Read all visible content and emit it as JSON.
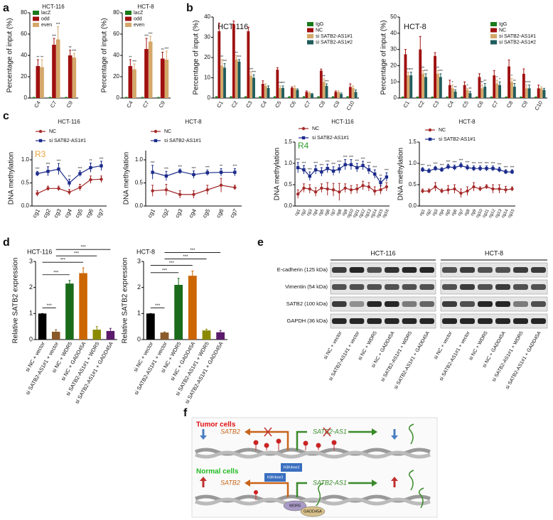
{
  "panel_labels": [
    "a",
    "b",
    "c",
    "d",
    "e",
    "f"
  ],
  "chart_data": [
    {
      "type": "bar",
      "title": "HCT-116",
      "ylabel": "Percentage of input (%)",
      "categories": [
        "C4",
        "C7",
        "C9"
      ],
      "ylim": [
        0,
        80
      ],
      "yticks": [
        0,
        20,
        40,
        60,
        80
      ],
      "series": [
        {
          "name": "lacZ",
          "color": "#1a7a1a",
          "values": [
            0.5,
            0.5,
            0.5
          ],
          "errors": [
            0.2,
            0.2,
            0.2
          ]
        },
        {
          "name": "odd",
          "color": "#a01010",
          "values": [
            30,
            50,
            40
          ],
          "errors": [
            6,
            6,
            5
          ],
          "sig": [
            "**",
            "***",
            "**"
          ]
        },
        {
          "name": "even",
          "color": "#d4a86a",
          "values": [
            29,
            55,
            38
          ],
          "errors": [
            7,
            12,
            4
          ],
          "sig": [
            "**",
            "***",
            "***"
          ]
        }
      ]
    },
    {
      "type": "bar",
      "title": "HCT-8",
      "ylabel": "Percentage of input (%)",
      "categories": [
        "C4",
        "C7",
        "C9"
      ],
      "ylim": [
        0,
        80
      ],
      "yticks": [
        0,
        20,
        40,
        60,
        80
      ],
      "series": [
        {
          "name": "lacZ",
          "color": "#1a7a1a",
          "values": [
            0.5,
            0.5,
            0.5
          ],
          "errors": [
            0.2,
            0.2,
            0.2
          ]
        },
        {
          "name": "odd",
          "color": "#a01010",
          "values": [
            30,
            46,
            37
          ],
          "errors": [
            6,
            10,
            6
          ],
          "sig": [
            "**",
            "***",
            "**"
          ]
        },
        {
          "name": "even",
          "color": "#d4a86a",
          "values": [
            27,
            53,
            36
          ],
          "errors": [
            5,
            5,
            8
          ],
          "sig": [
            "***",
            "***",
            "***"
          ]
        }
      ]
    },
    {
      "type": "bar",
      "title": "HCT-116",
      "ylabel": "Percentage of input (%)",
      "categories": [
        "C1",
        "C2",
        "C3",
        "C4",
        "C5",
        "C6",
        "C7",
        "C8",
        "C9",
        "C10"
      ],
      "ylim": [
        0,
        40
      ],
      "yticks": [
        0,
        10,
        20,
        30,
        40
      ],
      "series": [
        {
          "name": "IgG",
          "color": "#1a7a1a",
          "values": [
            0.5,
            0.5,
            0.5,
            0.5,
            0.5,
            0.5,
            0.5,
            0.5,
            0.5,
            0.5
          ],
          "errors": [
            0.2,
            0.2,
            0.2,
            0.2,
            0.2,
            0.2,
            0.2,
            0.2,
            0.2,
            0.2
          ]
        },
        {
          "name": "NC",
          "color": "#a01010",
          "values": [
            33,
            36.5,
            33,
            7,
            14,
            5,
            3,
            13.5,
            3,
            5.5
          ],
          "errors": [
            4,
            1.5,
            2,
            1.5,
            1,
            0.5,
            0.5,
            0.8,
            0.5,
            1.5
          ]
        },
        {
          "name": "si SATB2-AS1#1",
          "color": "#d4a86a",
          "values": [
            16,
            19,
            11,
            6,
            5,
            5,
            2.5,
            8,
            3,
            5
          ],
          "errors": [
            3,
            2,
            2,
            1,
            1,
            1,
            0.5,
            1.5,
            0.5,
            1
          ],
          "sig": [
            "**",
            "**",
            "***",
            null,
            "***",
            null,
            null,
            "**",
            null,
            null
          ]
        },
        {
          "name": "si SATB2-AS1#2",
          "color": "#1f5c5c",
          "values": [
            15,
            18,
            10,
            5,
            5,
            4,
            2,
            6,
            2,
            3
          ],
          "errors": [
            2,
            1,
            1.5,
            1,
            1,
            0.5,
            0.3,
            1,
            0.5,
            1
          ],
          "sig": [
            "***",
            "***",
            "***",
            null,
            "***",
            null,
            null,
            "***",
            null,
            null
          ]
        }
      ]
    },
    {
      "type": "bar",
      "title": "HCT-8",
      "ylabel": "Percentage of input (%)",
      "categories": [
        "C1",
        "C2",
        "C3",
        "C4",
        "C5",
        "C6",
        "C7",
        "C8",
        "C9",
        "C10"
      ],
      "ylim": [
        0,
        50
      ],
      "yticks": [
        0,
        10,
        20,
        30,
        40,
        50
      ],
      "series": [
        {
          "name": "IgG",
          "color": "#1a7a1a",
          "values": [
            0.5,
            0.5,
            0.5,
            0.5,
            0.5,
            0.5,
            0.5,
            0.5,
            0.5,
            0.5
          ],
          "errors": [
            0.2,
            0.2,
            0.2,
            0.2,
            0.2,
            0.2,
            0.2,
            0.2,
            0.2,
            0.2
          ]
        },
        {
          "name": "NC",
          "color": "#a01010",
          "values": [
            27,
            30,
            26,
            8,
            8,
            13,
            14,
            19.5,
            15,
            6
          ],
          "errors": [
            3,
            8,
            2,
            3,
            2,
            2,
            3,
            4,
            3,
            2
          ]
        },
        {
          "name": "si SATB2-AS1#1",
          "color": "#d4a86a",
          "values": [
            14,
            15,
            15,
            6,
            5,
            6,
            9,
            10,
            6,
            6
          ],
          "errors": [
            2,
            2,
            2,
            2,
            1,
            2,
            2,
            2,
            2,
            1
          ],
          "sig": [
            "**",
            "**",
            "**",
            "*",
            "*",
            "**",
            "*",
            "*",
            "**",
            null
          ]
        },
        {
          "name": "si SATB2-AS1#2",
          "color": "#1f5c5c",
          "values": [
            14,
            13,
            13,
            4,
            3,
            7,
            8,
            7,
            6,
            5
          ],
          "errors": [
            2,
            2,
            2,
            1,
            1,
            2,
            2,
            2,
            2,
            1
          ],
          "sig": [
            "***",
            "***",
            "***",
            "**",
            "**",
            "**",
            "*",
            "**",
            "**",
            null
          ]
        }
      ]
    },
    {
      "type": "line",
      "title": "HCT-116",
      "annotation": "R3",
      "annotation_color": "#e8a33a",
      "ylabel": "DNA methylation",
      "categories": [
        "cg1",
        "cg2",
        "cg3",
        "cg4",
        "cg5",
        "cg6",
        "cg7"
      ],
      "ylim": [
        0,
        1.2
      ],
      "yticks": [
        {
          "value": 0,
          "label": "0.0"
        },
        {
          "value": 0.5,
          "label": "0.5"
        },
        {
          "value": 1,
          "label": "1.0"
        }
      ],
      "series": [
        {
          "name": "NC",
          "color": "#a52a2a",
          "marker": "circle",
          "values": [
            0.27,
            0.38,
            0.38,
            0.3,
            0.4,
            0.57,
            0.58
          ],
          "errors": [
            0.06,
            0.05,
            0.05,
            0.06,
            0.07,
            0.08,
            0.07
          ]
        },
        {
          "name": "si SATB2-AS1#1",
          "color": "#1a2a8a",
          "marker": "square",
          "values": [
            0.7,
            0.75,
            0.8,
            0.5,
            0.7,
            0.83,
            0.87
          ],
          "errors": [
            0.05,
            0.1,
            0.12,
            0.08,
            0.06,
            0.1,
            0.1
          ],
          "sig": [
            "***",
            "***",
            "***",
            "**",
            "***",
            "**",
            "***"
          ]
        }
      ]
    },
    {
      "type": "line",
      "title": "HCT-8",
      "ylabel": "DNA methylation",
      "categories": [
        "cg1",
        "cg2",
        "cg3",
        "cg4",
        "cg5",
        "cg6",
        "cg7"
      ],
      "ylim": [
        0,
        1.2
      ],
      "yticks": [
        {
          "value": 0,
          "label": "0.0"
        },
        {
          "value": 0.5,
          "label": "0.5"
        },
        {
          "value": 1,
          "label": "1.0"
        }
      ],
      "series": [
        {
          "name": "NC",
          "color": "#a52a2a",
          "marker": "circle",
          "values": [
            0.33,
            0.35,
            0.25,
            0.25,
            0.35,
            0.45,
            0.4
          ],
          "errors": [
            0.12,
            0.12,
            0.08,
            0.08,
            0.1,
            0.15,
            0.05
          ]
        },
        {
          "name": "si SATB2-AS1#1",
          "color": "#1a2a8a",
          "marker": "square",
          "values": [
            0.73,
            0.65,
            0.75,
            0.68,
            0.72,
            0.73,
            0.73
          ],
          "errors": [
            0.15,
            0.1,
            0.05,
            0.08,
            0.06,
            0.08,
            0.08
          ],
          "sig": [
            "***",
            "***",
            "***",
            "***",
            "***",
            "**",
            "***"
          ]
        }
      ]
    },
    {
      "type": "line",
      "title": "HCT-116",
      "annotation": "R4",
      "annotation_color": "#2e9e2e",
      "ylabel": "DNA methylation",
      "categories": [
        "cg1",
        "cg2",
        "cg3",
        "cg4",
        "cg5",
        "cg6",
        "cg7",
        "cg8",
        "cg9",
        "cg10",
        "cg11",
        "cg12",
        "cg13",
        "cg14",
        "cg15",
        "cg16"
      ],
      "ylim": [
        0,
        1.5
      ],
      "yticks": [
        {
          "value": 0,
          "label": "0.0"
        },
        {
          "value": 0.5,
          "label": "0.5"
        },
        {
          "value": 1,
          "label": "1.0"
        },
        {
          "value": 1.5,
          "label": "1.5"
        }
      ],
      "series": [
        {
          "name": "NC",
          "color": "#a52a2a",
          "marker": "circle",
          "values": [
            0.28,
            0.42,
            0.4,
            0.33,
            0.42,
            0.4,
            0.38,
            0.33,
            0.42,
            0.38,
            0.4,
            0.48,
            0.45,
            0.35,
            0.38,
            0.45
          ],
          "errors": [
            0.1,
            0.1,
            0.1,
            0.1,
            0.1,
            0.15,
            0.15,
            0.2,
            0.1,
            0.1,
            0.1,
            0.1,
            0.1,
            0.1,
            0.1,
            0.1
          ]
        },
        {
          "name": "si SATB2-AS1#1",
          "color": "#1a2a8a",
          "marker": "square",
          "values": [
            0.9,
            0.85,
            0.7,
            0.85,
            0.8,
            0.88,
            0.82,
            0.87,
            0.97,
            0.97,
            0.9,
            0.95,
            0.85,
            0.75,
            0.55,
            0.68
          ],
          "errors": [
            0.12,
            0.1,
            0.1,
            0.1,
            0.1,
            0.1,
            0.1,
            0.1,
            0.12,
            0.12,
            0.1,
            0.1,
            0.1,
            0.1,
            0.1,
            0.1
          ],
          "sig": [
            "***",
            "***",
            "***",
            "***",
            "***",
            "***",
            "***",
            "***",
            "***",
            "***",
            "***",
            "***",
            "***",
            "***",
            "**",
            "***"
          ]
        }
      ]
    },
    {
      "type": "line",
      "title": "HCT-8",
      "ylabel": "DNA methylation",
      "categories": [
        "cg1",
        "cg2",
        "cg3",
        "cg4",
        "cg5",
        "cg6",
        "cg7",
        "cg8",
        "cg9",
        "cg10",
        "cg11",
        "cg12",
        "cg13",
        "cg14",
        "cg15"
      ],
      "ylim": [
        0,
        1.5
      ],
      "yticks": [
        {
          "value": 0,
          "label": "0.0"
        },
        {
          "value": 0.5,
          "label": "0.5"
        },
        {
          "value": 1,
          "label": "1.0"
        },
        {
          "value": 1.5,
          "label": "1.5"
        }
      ],
      "series": [
        {
          "name": "NC",
          "color": "#a52a2a",
          "marker": "circle",
          "values": [
            0.35,
            0.35,
            0.45,
            0.35,
            0.38,
            0.4,
            0.3,
            0.35,
            0.45,
            0.4,
            0.45,
            0.4,
            0.4,
            0.38,
            0.4
          ],
          "errors": [
            0.05,
            0.05,
            0.1,
            0.05,
            0.1,
            0.1,
            0.1,
            0.1,
            0.1,
            0.05,
            0.05,
            0.1,
            0.1,
            0.08,
            0.05
          ]
        },
        {
          "name": "si SATB2-AS1#1",
          "color": "#1a2a8a",
          "marker": "square",
          "values": [
            0.85,
            0.82,
            0.88,
            0.85,
            0.92,
            0.9,
            0.95,
            0.9,
            0.88,
            0.88,
            0.88,
            0.88,
            0.85,
            0.8,
            0.8
          ],
          "errors": [
            0.05,
            0.05,
            0.05,
            0.05,
            0.06,
            0.06,
            0.06,
            0.06,
            0.06,
            0.06,
            0.06,
            0.06,
            0.06,
            0.05,
            0.05
          ],
          "sig": [
            "***",
            "***",
            "***",
            "***",
            "***",
            "***",
            "***",
            "***",
            "***",
            "***",
            "***",
            "***",
            "***",
            "***",
            "***"
          ]
        }
      ]
    },
    {
      "type": "colorbar",
      "title": "HCT-116",
      "ylabel": "Relative SATB2 expression",
      "categories": [
        "si NC + vector",
        "si SATB2-AS1#1 + vector",
        "si NC + WDR5",
        "si NC + GADD45A",
        "si SATB2-AS1#1 + WDR5",
        "si SATB2-AS1#1 + GADD45A"
      ],
      "colors": [
        "#000000",
        "#8b5a2b",
        "#1a6b1a",
        "#cc6600",
        "#8a8a00",
        "#5b1a6b"
      ],
      "ylim": [
        0,
        3
      ],
      "yticks": [
        0,
        1,
        2,
        3
      ],
      "values": [
        1,
        0.3,
        2.15,
        2.55,
        0.38,
        0.33
      ],
      "errors": [
        0,
        0.08,
        0.12,
        0.2,
        0.12,
        0.1
      ],
      "brackets": [
        {
          "from": 0,
          "to": 1,
          "label": "***"
        },
        {
          "from": 0,
          "to": 2,
          "label": "***"
        },
        {
          "from": 0,
          "to": 3,
          "label": "***"
        },
        {
          "from": 1,
          "to": 4,
          "label": "***"
        },
        {
          "from": 1,
          "to": 5,
          "label": "***"
        }
      ]
    },
    {
      "type": "colorbar",
      "title": "HCT-8",
      "ylabel": "Relative SATB2 expression",
      "categories": [
        "si NC + vector",
        "si SATB2-AS1#1 + vector",
        "si NC + WDR5",
        "si NC + GADD45A",
        "si SATB2-AS1#1 + WDR5",
        "si SATB2-AS1#1 + GADD45A"
      ],
      "colors": [
        "#000000",
        "#8b5a2b",
        "#1a6b1a",
        "#cc6600",
        "#8a8a00",
        "#5b1a6b"
      ],
      "ylim": [
        0,
        3
      ],
      "yticks": [
        0,
        1,
        2,
        3
      ],
      "values": [
        1,
        0.27,
        2.1,
        2.45,
        0.35,
        0.28
      ],
      "errors": [
        0,
        0.02,
        0.25,
        0.18,
        0.05,
        0.07
      ],
      "brackets": [
        {
          "from": 0,
          "to": 1,
          "label": "***"
        },
        {
          "from": 0,
          "to": 2,
          "label": "***"
        },
        {
          "from": 0,
          "to": 3,
          "label": "***"
        },
        {
          "from": 1,
          "to": 4,
          "label": "***"
        },
        {
          "from": 1,
          "to": 5,
          "label": "***"
        }
      ]
    }
  ],
  "blot": {
    "cells": [
      "HCT-116",
      "HCT-8"
    ],
    "rows": [
      "E-cadherin (125 kDa)",
      "Vimentin (54 kDa)",
      "SATB2 (100 kDa)",
      "GAPDH (36 kDa)"
    ],
    "lanes": [
      "si NC + vector",
      "si SATB2-AS1#1 + vector",
      "si NC + WDR5",
      "si NC + GADD45A",
      "si SATB2-AS1#1 + WDR5",
      "si SATB2-AS1#1 + GADD45A"
    ]
  },
  "diagram": {
    "tumor": "Tumor cells",
    "normal": "Normal cells",
    "gene": "SATB2",
    "antisense": "SATB2-AS1",
    "histone": "H3K4me3",
    "protein1": "WDR5",
    "protein2": "GADD45A"
  }
}
